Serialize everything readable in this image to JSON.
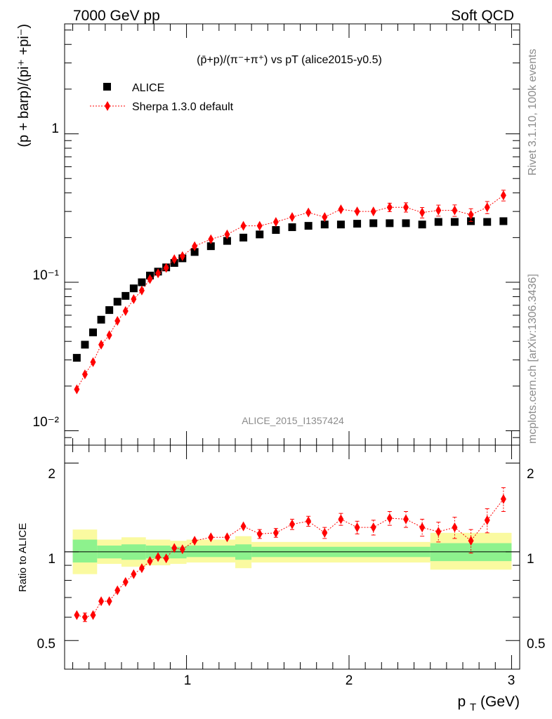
{
  "header": {
    "left": "7000 GeV pp",
    "right": "Soft QCD"
  },
  "side_labels": {
    "rivet": "Rivet 3.1.10,  100k events",
    "mcplots": "mcplots.cern.ch [arXiv:1306.3436]"
  },
  "chart_data": [
    {
      "type": "scatter",
      "title": "(p̄+p)/(π⁻+π⁺) vs pT (alice2015-y0.5)",
      "watermark": "ALICE_2015_I1357424",
      "ylabel": "(p + barp)/(pi⁺ +pi⁻)",
      "yscale": "log",
      "ylim": [
        0.008,
        5.5
      ],
      "xlim": [
        0.25,
        3.05
      ],
      "x_ticks": [
        "1",
        "2",
        "3"
      ],
      "y_ticks": [
        "10⁻²",
        "10⁻¹",
        "1"
      ],
      "legend_position": "top-left",
      "series": [
        {
          "name": "ALICE",
          "color": "#000000",
          "marker": "square",
          "x": [
            0.325,
            0.375,
            0.425,
            0.475,
            0.525,
            0.575,
            0.625,
            0.675,
            0.725,
            0.775,
            0.825,
            0.875,
            0.925,
            0.975,
            1.05,
            1.15,
            1.25,
            1.35,
            1.45,
            1.55,
            1.65,
            1.75,
            1.85,
            1.95,
            2.05,
            2.15,
            2.25,
            2.35,
            2.45,
            2.55,
            2.65,
            2.75,
            2.85,
            2.95
          ],
          "y": [
            0.031,
            0.038,
            0.046,
            0.056,
            0.065,
            0.074,
            0.081,
            0.091,
            0.1,
            0.111,
            0.118,
            0.126,
            0.135,
            0.145,
            0.16,
            0.175,
            0.19,
            0.2,
            0.21,
            0.225,
            0.235,
            0.24,
            0.245,
            0.245,
            0.248,
            0.25,
            0.25,
            0.25,
            0.245,
            0.255,
            0.255,
            0.258,
            0.255,
            0.258
          ]
        },
        {
          "name": "Sherpa 1.3.0 default",
          "color": "#ff0000",
          "marker": "diamond",
          "x": [
            0.325,
            0.375,
            0.425,
            0.475,
            0.525,
            0.575,
            0.625,
            0.675,
            0.725,
            0.775,
            0.825,
            0.875,
            0.925,
            0.975,
            1.05,
            1.15,
            1.25,
            1.35,
            1.45,
            1.55,
            1.65,
            1.75,
            1.85,
            1.95,
            2.05,
            2.15,
            2.25,
            2.35,
            2.45,
            2.55,
            2.65,
            2.75,
            2.85,
            2.95
          ],
          "y": [
            0.019,
            0.024,
            0.029,
            0.038,
            0.044,
            0.055,
            0.064,
            0.077,
            0.088,
            0.105,
            0.115,
            0.125,
            0.143,
            0.15,
            0.175,
            0.195,
            0.21,
            0.24,
            0.24,
            0.255,
            0.275,
            0.295,
            0.275,
            0.31,
            0.3,
            0.3,
            0.32,
            0.32,
            0.295,
            0.305,
            0.305,
            0.285,
            0.32,
            0.385
          ],
          "yerr": [
            0.001,
            0.001,
            0.001,
            0.002,
            0.002,
            0.002,
            0.002,
            0.003,
            0.003,
            0.003,
            0.003,
            0.003,
            0.004,
            0.004,
            0.005,
            0.006,
            0.007,
            0.008,
            0.009,
            0.01,
            0.012,
            0.013,
            0.015,
            0.016,
            0.018,
            0.019,
            0.021,
            0.023,
            0.024,
            0.026,
            0.027,
            0.028,
            0.03,
            0.032
          ]
        }
      ]
    },
    {
      "type": "scatter",
      "ylabel": "Ratio to ALICE",
      "xlabel": "p_T (GeV)",
      "ylim": [
        0.4,
        2.3
      ],
      "xlim": [
        0.25,
        3.05
      ],
      "y_ticks": [
        "0.5",
        "1",
        "2"
      ],
      "x_ticks": [
        "1",
        "2",
        "3"
      ],
      "reference_line": 1,
      "bands": {
        "green_color": "#8df28d",
        "yellow_color": "#fafaa0",
        "edges": [
          0.3,
          0.45,
          0.6,
          0.75,
          0.9,
          1.0,
          1.3,
          1.4,
          2.5,
          3.0
        ],
        "green_lo": [
          0.92,
          0.95,
          0.94,
          0.95,
          0.95,
          0.96,
          0.94,
          0.96,
          0.93
        ],
        "green_hi": [
          1.1,
          1.05,
          1.06,
          1.05,
          1.04,
          1.05,
          1.06,
          1.04,
          1.07
        ],
        "yellow_lo": [
          0.84,
          0.91,
          0.89,
          0.9,
          0.91,
          0.92,
          0.88,
          0.92,
          0.87
        ],
        "yellow_hi": [
          1.19,
          1.1,
          1.12,
          1.1,
          1.09,
          1.1,
          1.13,
          1.08,
          1.16
        ]
      },
      "series": [
        {
          "name": "Sherpa 1.3.0 default",
          "color": "#ff0000",
          "marker": "diamond",
          "x": [
            0.325,
            0.375,
            0.425,
            0.475,
            0.525,
            0.575,
            0.625,
            0.675,
            0.725,
            0.775,
            0.825,
            0.875,
            0.925,
            0.975,
            1.05,
            1.15,
            1.25,
            1.35,
            1.45,
            1.55,
            1.65,
            1.75,
            1.85,
            1.95,
            2.05,
            2.15,
            2.25,
            2.35,
            2.45,
            2.55,
            2.65,
            2.75,
            2.85,
            2.95
          ],
          "y": [
            0.61,
            0.6,
            0.61,
            0.68,
            0.68,
            0.74,
            0.79,
            0.84,
            0.88,
            0.93,
            0.96,
            0.95,
            1.03,
            1.02,
            1.09,
            1.12,
            1.12,
            1.22,
            1.15,
            1.16,
            1.24,
            1.27,
            1.16,
            1.29,
            1.21,
            1.21,
            1.3,
            1.29,
            1.21,
            1.17,
            1.21,
            1.09,
            1.28,
            1.51
          ],
          "yerr": [
            0.02,
            0.02,
            0.02,
            0.02,
            0.02,
            0.02,
            0.02,
            0.02,
            0.02,
            0.02,
            0.02,
            0.02,
            0.02,
            0.02,
            0.03,
            0.03,
            0.03,
            0.04,
            0.04,
            0.04,
            0.05,
            0.05,
            0.05,
            0.06,
            0.06,
            0.07,
            0.07,
            0.08,
            0.08,
            0.09,
            0.1,
            0.1,
            0.12,
            0.14
          ]
        }
      ]
    }
  ]
}
